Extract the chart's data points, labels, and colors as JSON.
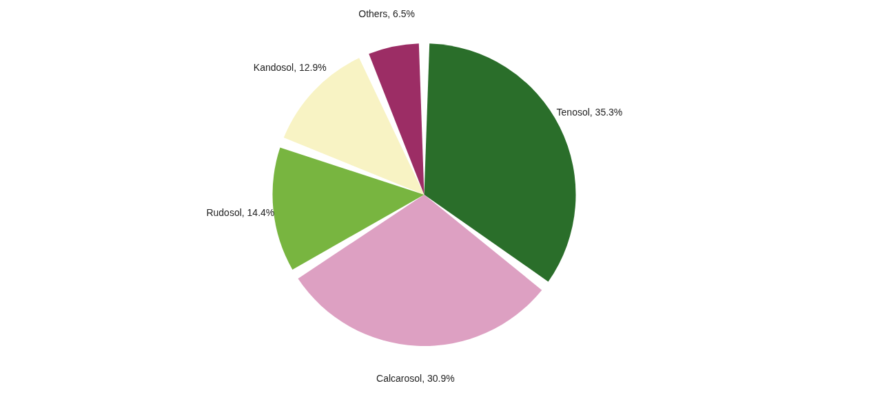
{
  "chart_data": {
    "type": "pie",
    "categories": [
      "Tenosol",
      "Calcarosol",
      "Rudosol",
      "Kandosol",
      "Others"
    ],
    "values": [
      35.3,
      30.9,
      14.4,
      12.9,
      6.5
    ],
    "value_labels": [
      "35.3%",
      "30.9%",
      "14.4%",
      "12.9%",
      "6.5%"
    ],
    "colors": [
      "#2a6e2a",
      "#dda0c2",
      "#78b540",
      "#f8f3c4",
      "#9c2d65"
    ],
    "legend": false
  }
}
